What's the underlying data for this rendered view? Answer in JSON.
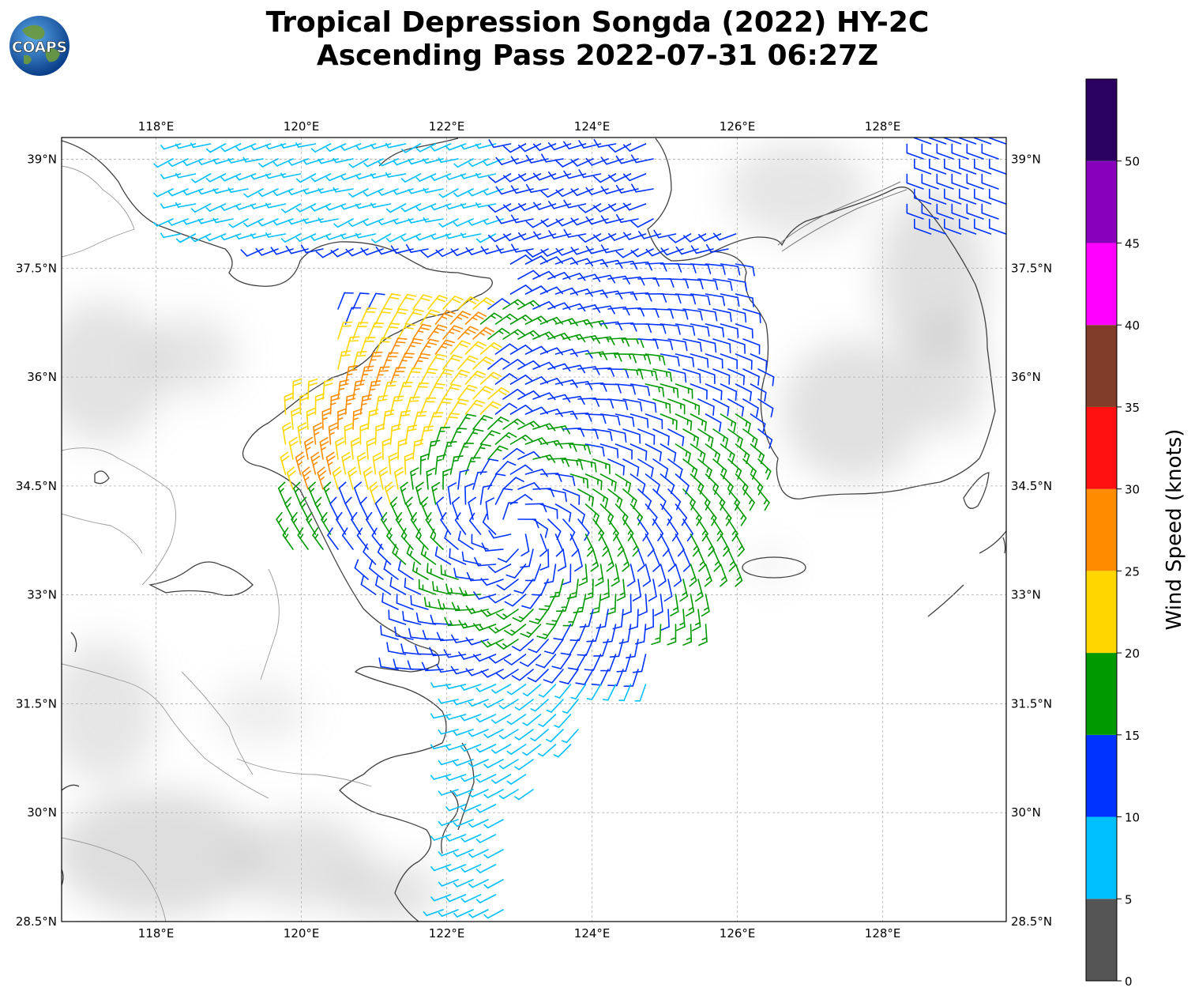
{
  "title": {
    "line1": "Tropical Depression Songda (2022) HY-2C",
    "line2": "Ascending Pass 2022-07-31 06:27Z"
  },
  "logo": {
    "text": "COAPS",
    "icon": "globe-logo-icon"
  },
  "map": {
    "lon_range": [
      116.7,
      129.7
    ],
    "lat_range": [
      28.5,
      39.3
    ],
    "lon_ticks": [
      {
        "value": 118,
        "label": "118°E"
      },
      {
        "value": 120,
        "label": "120°E"
      },
      {
        "value": 122,
        "label": "122°E"
      },
      {
        "value": 124,
        "label": "124°E"
      },
      {
        "value": 126,
        "label": "126°E"
      },
      {
        "value": 128,
        "label": "128°E"
      }
    ],
    "lat_ticks": [
      {
        "value": 39,
        "label": "39°N"
      },
      {
        "value": 37.5,
        "label": "37.5°N"
      },
      {
        "value": 36,
        "label": "36°N"
      },
      {
        "value": 34.5,
        "label": "34.5°N"
      },
      {
        "value": 33,
        "label": "33°N"
      },
      {
        "value": 31.5,
        "label": "31.5°N"
      },
      {
        "value": 30,
        "label": "30°N"
      },
      {
        "value": 28.5,
        "label": "28.5°N"
      }
    ],
    "gridlines": true,
    "storm_center": {
      "lon": 122.9,
      "lat": 33.9
    }
  },
  "colorbar": {
    "label": "Wind Speed (knots)",
    "bins": [
      {
        "min": 0,
        "max": 5,
        "color": "#555555"
      },
      {
        "min": 5,
        "max": 10,
        "color": "#00bfff"
      },
      {
        "min": 10,
        "max": 15,
        "color": "#0033ff"
      },
      {
        "min": 15,
        "max": 20,
        "color": "#009900"
      },
      {
        "min": 20,
        "max": 25,
        "color": "#ffd700"
      },
      {
        "min": 25,
        "max": 30,
        "color": "#ff8c00"
      },
      {
        "min": 30,
        "max": 35,
        "color": "#ff1010"
      },
      {
        "min": 35,
        "max": 40,
        "color": "#803c28"
      },
      {
        "min": 40,
        "max": 45,
        "color": "#ff00ff"
      },
      {
        "min": 45,
        "max": 50,
        "color": "#8800bb"
      },
      {
        "min": 50,
        "max": 55,
        "color": "#2a0060"
      }
    ],
    "ticks": [
      "0",
      "5",
      "10",
      "15",
      "20",
      "25",
      "30",
      "35",
      "40",
      "45",
      "50"
    ]
  }
}
